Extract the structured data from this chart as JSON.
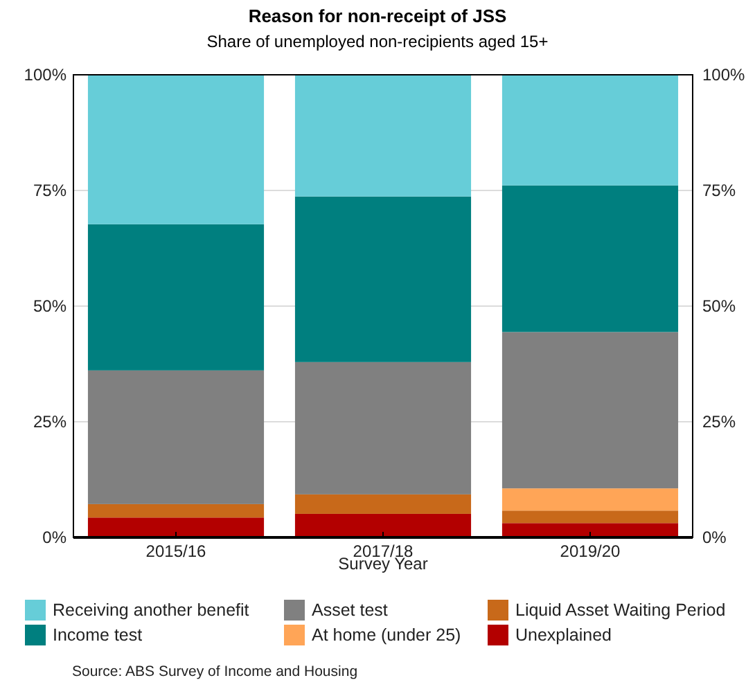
{
  "chart_data": {
    "type": "bar",
    "title": "Reason for non-receipt of JSS",
    "subtitle": "Share of unemployed non-recipients aged 15+",
    "xlabel": "Survey Year",
    "categories": [
      "2015/16",
      "2017/18",
      "2019/20"
    ],
    "stacked": true,
    "series": [
      {
        "name": "Unexplained",
        "color": "#b30000",
        "values": [
          4.3,
          5.1,
          3.1
        ]
      },
      {
        "name": "Liquid Asset Waiting Period",
        "color": "#c8691a",
        "values": [
          2.9,
          4.2,
          2.7
        ]
      },
      {
        "name": "At home (under 25)",
        "color": "#ffa557",
        "values": [
          0,
          0,
          4.8
        ]
      },
      {
        "name": "Asset test",
        "color": "#808080",
        "values": [
          28.9,
          28.6,
          33.8
        ]
      },
      {
        "name": "Income test",
        "color": "#007f7f",
        "values": [
          31.6,
          35.8,
          31.7
        ]
      },
      {
        "name": "Receiving another benefit",
        "color": "#66cdd8",
        "values": [
          32.3,
          26.3,
          23.9
        ]
      }
    ],
    "ylim": [
      0,
      100
    ],
    "yticks": [
      {
        "value": 0,
        "label": "0%"
      },
      {
        "value": 25,
        "label": "25%"
      },
      {
        "value": 50,
        "label": "50%"
      },
      {
        "value": 75,
        "label": "75%"
      },
      {
        "value": 100,
        "label": "100%"
      }
    ],
    "y2lim": [
      0,
      100
    ],
    "y2ticks": [
      {
        "value": 0,
        "label": "0%"
      },
      {
        "value": 25,
        "label": "25%"
      },
      {
        "value": 50,
        "label": "50%"
      },
      {
        "value": 75,
        "label": "75%"
      },
      {
        "value": 100,
        "label": "100%"
      }
    ],
    "grid": "y",
    "legend": "bottom",
    "annotations": [
      "Source: ABS Survey of Income and Housing"
    ]
  }
}
